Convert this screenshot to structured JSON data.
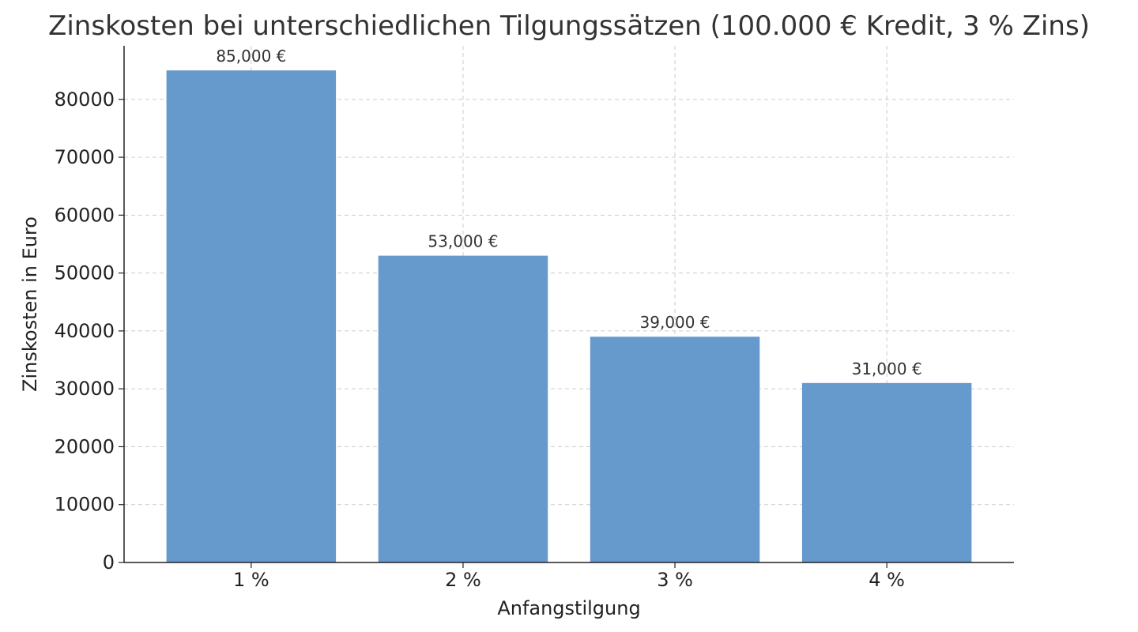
{
  "chart_data": {
    "type": "bar",
    "title": "Zinskosten bei unterschiedlichen Tilgungssätzen (100.000 € Kredit, 3 % Zins)",
    "xlabel": "Anfangstilgung",
    "ylabel": "Zinskosten in Euro",
    "categories": [
      "1 %",
      "2 %",
      "3 %",
      "4 %"
    ],
    "values": [
      85000,
      53000,
      39000,
      31000
    ],
    "data_labels": [
      "85,000 €",
      "53,000 €",
      "39,000 €",
      "31,000 €"
    ],
    "ylim": [
      0,
      89250
    ],
    "yticks": [
      0,
      10000,
      20000,
      30000,
      40000,
      50000,
      60000,
      70000,
      80000
    ],
    "ytick_labels": [
      "0",
      "10000",
      "20000",
      "30000",
      "40000",
      "50000",
      "60000",
      "70000",
      "80000"
    ],
    "grid": true,
    "bar_color": "#6699cc"
  }
}
